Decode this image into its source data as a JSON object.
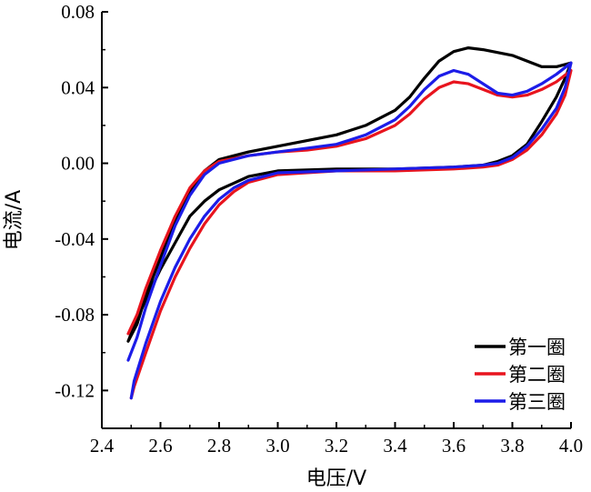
{
  "chart_data": {
    "type": "line",
    "xlabel": "电压/V",
    "ylabel": "电流/A",
    "xlim": [
      2.4,
      4.0
    ],
    "ylim": [
      -0.14,
      0.08
    ],
    "x_ticks": [
      "2.4",
      "2.6",
      "2.8",
      "3.0",
      "3.2",
      "3.4",
      "3.6",
      "3.8",
      "4.0"
    ],
    "y_ticks": [
      {
        "value": 0.08,
        "label": "0.08"
      },
      {
        "value": 0.04,
        "label": "0.04"
      },
      {
        "value": 0.0,
        "label": "0.00"
      },
      {
        "value": -0.04,
        "label": "-0.04"
      },
      {
        "value": -0.08,
        "label": "-0.08"
      },
      {
        "value": -0.12,
        "label": "-0.12"
      }
    ],
    "grid": false,
    "legend_position": "bottom-right",
    "series": [
      {
        "name": "第一圈",
        "color": "#000000",
        "points": [
          [
            2.49,
            -0.094
          ],
          [
            2.52,
            -0.085
          ],
          [
            2.55,
            -0.07
          ],
          [
            2.6,
            -0.05
          ],
          [
            2.65,
            -0.03
          ],
          [
            2.7,
            -0.015
          ],
          [
            2.75,
            -0.004
          ],
          [
            2.8,
            0.002
          ],
          [
            2.9,
            0.006
          ],
          [
            3.0,
            0.009
          ],
          [
            3.1,
            0.012
          ],
          [
            3.2,
            0.015
          ],
          [
            3.3,
            0.02
          ],
          [
            3.4,
            0.028
          ],
          [
            3.45,
            0.035
          ],
          [
            3.5,
            0.045
          ],
          [
            3.55,
            0.054
          ],
          [
            3.6,
            0.059
          ],
          [
            3.65,
            0.061
          ],
          [
            3.7,
            0.06
          ],
          [
            3.8,
            0.057
          ],
          [
            3.9,
            0.051
          ],
          [
            3.95,
            0.051
          ],
          [
            4.0,
            0.053
          ],
          [
            3.98,
            0.045
          ],
          [
            3.95,
            0.035
          ],
          [
            3.9,
            0.022
          ],
          [
            3.85,
            0.01
          ],
          [
            3.8,
            0.004
          ],
          [
            3.75,
            0.001
          ],
          [
            3.7,
            -0.001
          ],
          [
            3.6,
            -0.002
          ],
          [
            3.4,
            -0.003
          ],
          [
            3.2,
            -0.003
          ],
          [
            3.0,
            -0.004
          ],
          [
            2.9,
            -0.007
          ],
          [
            2.8,
            -0.014
          ],
          [
            2.75,
            -0.02
          ],
          [
            2.7,
            -0.028
          ],
          [
            2.65,
            -0.042
          ],
          [
            2.6,
            -0.056
          ],
          [
            2.55,
            -0.072
          ],
          [
            2.5,
            -0.09
          ],
          [
            2.49,
            -0.094
          ]
        ]
      },
      {
        "name": "第二圈",
        "color": "#e8141e",
        "points": [
          [
            2.49,
            -0.09
          ],
          [
            2.52,
            -0.08
          ],
          [
            2.55,
            -0.066
          ],
          [
            2.6,
            -0.046
          ],
          [
            2.65,
            -0.028
          ],
          [
            2.7,
            -0.013
          ],
          [
            2.75,
            -0.004
          ],
          [
            2.8,
            0.001
          ],
          [
            2.9,
            0.004
          ],
          [
            3.0,
            0.006
          ],
          [
            3.1,
            0.007
          ],
          [
            3.2,
            0.009
          ],
          [
            3.3,
            0.013
          ],
          [
            3.4,
            0.02
          ],
          [
            3.45,
            0.026
          ],
          [
            3.5,
            0.034
          ],
          [
            3.55,
            0.04
          ],
          [
            3.6,
            0.043
          ],
          [
            3.65,
            0.042
          ],
          [
            3.7,
            0.039
          ],
          [
            3.75,
            0.036
          ],
          [
            3.8,
            0.035
          ],
          [
            3.85,
            0.036
          ],
          [
            3.9,
            0.039
          ],
          [
            3.95,
            0.043
          ],
          [
            4.0,
            0.049
          ],
          [
            3.98,
            0.036
          ],
          [
            3.95,
            0.026
          ],
          [
            3.9,
            0.015
          ],
          [
            3.85,
            0.007
          ],
          [
            3.8,
            0.002
          ],
          [
            3.75,
            -0.001
          ],
          [
            3.7,
            -0.002
          ],
          [
            3.6,
            -0.003
          ],
          [
            3.4,
            -0.004
          ],
          [
            3.2,
            -0.004
          ],
          [
            3.0,
            -0.006
          ],
          [
            2.9,
            -0.01
          ],
          [
            2.85,
            -0.015
          ],
          [
            2.8,
            -0.022
          ],
          [
            2.75,
            -0.032
          ],
          [
            2.7,
            -0.045
          ],
          [
            2.65,
            -0.06
          ],
          [
            2.6,
            -0.078
          ],
          [
            2.55,
            -0.1
          ],
          [
            2.51,
            -0.118
          ],
          [
            2.5,
            -0.124
          ]
        ]
      },
      {
        "name": "第三圈",
        "color": "#1c1ce8",
        "points": [
          [
            2.49,
            -0.104
          ],
          [
            2.52,
            -0.092
          ],
          [
            2.55,
            -0.076
          ],
          [
            2.6,
            -0.054
          ],
          [
            2.65,
            -0.033
          ],
          [
            2.7,
            -0.017
          ],
          [
            2.75,
            -0.006
          ],
          [
            2.8,
            0.0
          ],
          [
            2.9,
            0.004
          ],
          [
            3.0,
            0.006
          ],
          [
            3.1,
            0.008
          ],
          [
            3.2,
            0.01
          ],
          [
            3.3,
            0.015
          ],
          [
            3.4,
            0.023
          ],
          [
            3.45,
            0.03
          ],
          [
            3.5,
            0.039
          ],
          [
            3.55,
            0.046
          ],
          [
            3.6,
            0.049
          ],
          [
            3.65,
            0.047
          ],
          [
            3.7,
            0.042
          ],
          [
            3.75,
            0.037
          ],
          [
            3.8,
            0.036
          ],
          [
            3.85,
            0.038
          ],
          [
            3.9,
            0.042
          ],
          [
            3.95,
            0.047
          ],
          [
            4.0,
            0.053
          ],
          [
            3.98,
            0.04
          ],
          [
            3.95,
            0.029
          ],
          [
            3.9,
            0.018
          ],
          [
            3.85,
            0.009
          ],
          [
            3.8,
            0.003
          ],
          [
            3.75,
            0.0
          ],
          [
            3.7,
            -0.001
          ],
          [
            3.6,
            -0.002
          ],
          [
            3.4,
            -0.003
          ],
          [
            3.2,
            -0.004
          ],
          [
            3.0,
            -0.005
          ],
          [
            2.9,
            -0.009
          ],
          [
            2.85,
            -0.013
          ],
          [
            2.8,
            -0.019
          ],
          [
            2.75,
            -0.028
          ],
          [
            2.7,
            -0.04
          ],
          [
            2.65,
            -0.055
          ],
          [
            2.6,
            -0.073
          ],
          [
            2.55,
            -0.095
          ],
          [
            2.51,
            -0.115
          ],
          [
            2.5,
            -0.124
          ]
        ]
      }
    ]
  }
}
